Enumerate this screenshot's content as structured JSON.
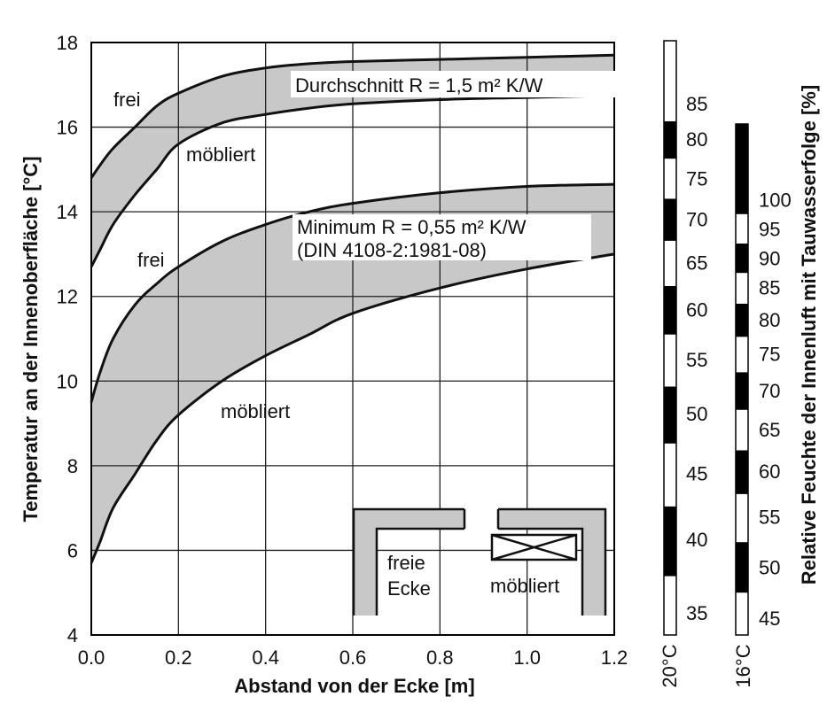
{
  "chart_data": {
    "type": "area",
    "xlabel": "Abstand von der Ecke [m]",
    "ylabel": "Temperatur an der Innenoberfläche [°C]",
    "right_axis_label": "Relative Feuchte der Innenluft mit Tauwasserfolge [%]",
    "xlim": [
      0,
      1.2
    ],
    "ylim": [
      4,
      18
    ],
    "x_ticks": [
      "0.0",
      "0.2",
      "0.4",
      "0.6",
      "0.8",
      "1.0",
      "1.2"
    ],
    "y_ticks": [
      "4",
      "6",
      "8",
      "10",
      "12",
      "14",
      "16",
      "18"
    ],
    "grid": true,
    "bands": [
      {
        "label": "Durchschnitt R = 1,5 m² K/W",
        "frei_label": "frei",
        "moebliert_label": "möbliert",
        "frei": {
          "x": [
            0,
            0.02,
            0.05,
            0.1,
            0.15,
            0.2,
            0.3,
            0.4,
            0.5,
            0.6,
            0.8,
            1.0,
            1.2
          ],
          "y": [
            14.8,
            15.1,
            15.5,
            16.0,
            16.5,
            16.8,
            17.2,
            17.4,
            17.5,
            17.55,
            17.6,
            17.65,
            17.7
          ]
        },
        "moebliert": {
          "x": [
            0,
            0.02,
            0.05,
            0.1,
            0.15,
            0.2,
            0.3,
            0.4,
            0.5,
            0.6,
            0.8,
            1.0,
            1.2
          ],
          "y": [
            12.7,
            13.1,
            13.7,
            14.4,
            15.0,
            15.6,
            16.1,
            16.3,
            16.45,
            16.55,
            16.65,
            16.7,
            16.75
          ]
        }
      },
      {
        "label": "Minimum R = 0,55 m² K/W",
        "label_line2": "(DIN 4108-2:1981-08)",
        "frei_label": "frei",
        "moebliert_label": "möbliert",
        "frei": {
          "x": [
            0,
            0.02,
            0.05,
            0.1,
            0.15,
            0.2,
            0.3,
            0.4,
            0.5,
            0.6,
            0.8,
            1.0,
            1.2
          ],
          "y": [
            9.5,
            10.2,
            11.0,
            11.8,
            12.3,
            12.7,
            13.3,
            13.7,
            14.0,
            14.2,
            14.45,
            14.6,
            14.65
          ]
        },
        "moebliert": {
          "x": [
            0,
            0.02,
            0.05,
            0.1,
            0.15,
            0.2,
            0.3,
            0.4,
            0.5,
            0.6,
            0.8,
            1.0,
            1.2
          ],
          "y": [
            5.7,
            6.2,
            7.0,
            7.8,
            8.6,
            9.2,
            10.0,
            10.6,
            11.1,
            11.6,
            12.2,
            12.65,
            13.0
          ]
        }
      }
    ],
    "inset": {
      "left_label": [
        "freie",
        "Ecke"
      ],
      "right_label": "möbliert"
    },
    "humidity_scales": [
      {
        "label": "20°C",
        "values": [
          35,
          40,
          45,
          50,
          55,
          60,
          65,
          70,
          75,
          80,
          85
        ],
        "temps": [
          4.52,
          6.26,
          7.82,
          9.23,
          10.51,
          11.69,
          12.8,
          13.83,
          14.79,
          15.72,
          16.56
        ]
      },
      {
        "label": "16°C",
        "values": [
          45,
          50,
          55,
          60,
          65,
          70,
          75,
          80,
          85,
          90,
          95,
          100
        ],
        "temps": [
          4.4,
          5.6,
          6.79,
          7.87,
          8.86,
          9.78,
          10.64,
          11.45,
          12.21,
          12.9,
          13.6,
          14.29
        ]
      }
    ],
    "colors": {
      "band_fill": "#c8c8c8",
      "line": "#111111",
      "grid": "#222222",
      "scale_black": "#000000",
      "scale_white": "#ffffff"
    }
  }
}
